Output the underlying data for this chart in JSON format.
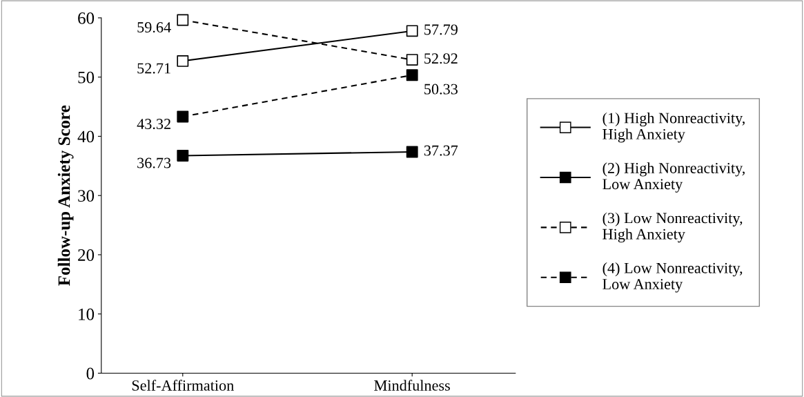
{
  "chart_data": {
    "type": "line",
    "ylabel": "Follow-up Anxiety Score",
    "categories": [
      "Self-Affirmation",
      "Mindfulness"
    ],
    "ylim": [
      0,
      60
    ],
    "yticks": [
      0,
      10,
      20,
      30,
      40,
      50,
      60
    ],
    "grid": false,
    "legend": "right",
    "data_labels": true,
    "series": [
      {
        "name": "(1) High Nonreactivity,\nHigh Anxiety",
        "color": "#000000",
        "colors": [
          "#ffffff",
          "#ffffff"
        ],
        "values": [
          52.71,
          57.79
        ],
        "line_style": "solid",
        "marker": "square"
      },
      {
        "name": "(2) High Nonreactivity,\nLow Anxiety",
        "color": "#000000",
        "colors": [
          "#000000",
          "#000000"
        ],
        "values": [
          36.73,
          37.37
        ],
        "line_style": "solid",
        "marker": "square"
      },
      {
        "name": "(3) Low Nonreactivity,\nHigh Anxiety",
        "color": "#000000",
        "colors": [
          "#ffffff",
          "#ffffff"
        ],
        "values": [
          59.64,
          52.92
        ],
        "line_style": "dashed",
        "marker": "square"
      },
      {
        "name": "(4) Low Nonreactivity,\nLow Anxiety",
        "color": "#000000",
        "colors": [
          "#000000",
          "#000000"
        ],
        "values": [
          43.32,
          50.33
        ],
        "line_style": "dashed",
        "marker": "square"
      }
    ]
  }
}
